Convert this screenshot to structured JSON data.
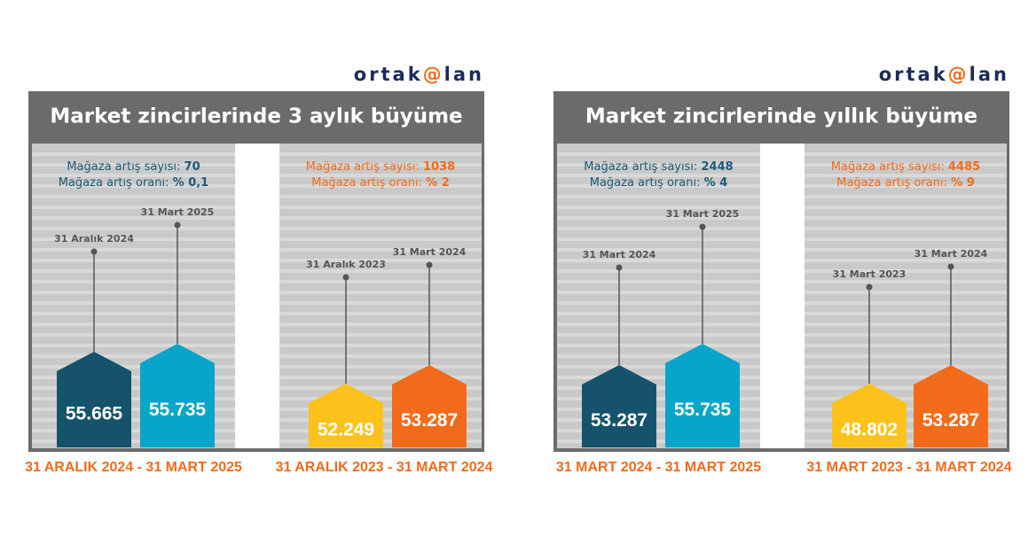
{
  "panels": [
    {
      "logo": {
        "pre": "ortak",
        "mark": "@",
        "post": "lan"
      },
      "title": "Market zincirlerinde 3 aylık büyüme",
      "sections": [
        {
          "stats": [
            {
              "label": "Mağaza artış sayısı:",
              "value": "70"
            },
            {
              "label": "Mağaza artış oranı:",
              "value": "% 0,1"
            }
          ],
          "houses": [
            {
              "date": "31 Aralık 2024",
              "value": "55.665"
            },
            {
              "date": "31 Mart 2025",
              "value": "55.735"
            }
          ],
          "period": "31 ARALIK 2024 - 31 MART 2025"
        },
        {
          "stats": [
            {
              "label": "Mağaza artış sayısı:",
              "value": "1038"
            },
            {
              "label": "Mağaza artış oranı:",
              "value": "% 2"
            }
          ],
          "houses": [
            {
              "date": "31 Aralık 2023",
              "value": "52.249"
            },
            {
              "date": "31 Mart 2024",
              "value": "53.287"
            }
          ],
          "period": "31 ARALIK 2023 - 31 MART 2024"
        }
      ]
    },
    {
      "logo": {
        "pre": "ortak",
        "mark": "@",
        "post": "lan"
      },
      "title": "Market zincirlerinde yıllık büyüme",
      "sections": [
        {
          "stats": [
            {
              "label": "Mağaza artış sayısı:",
              "value": "2448"
            },
            {
              "label": "Mağaza artış oranı:",
              "value": "% 4"
            }
          ],
          "houses": [
            {
              "date": "31 Mart 2024",
              "value": "53.287"
            },
            {
              "date": "31 Mart 2025",
              "value": "55.735"
            }
          ],
          "period": "31 MART 2024 - 31 MART 2025"
        },
        {
          "stats": [
            {
              "label": "Mağaza artış sayısı:",
              "value": "4485"
            },
            {
              "label": "Mağaza artış oranı:",
              "value": "% 9"
            }
          ],
          "houses": [
            {
              "date": "31 Mart 2023",
              "value": "48.802"
            },
            {
              "date": "31 Mart 2024",
              "value": "53.287"
            }
          ],
          "period": "31 MART 2023 - 31 MART 2024"
        }
      ]
    }
  ]
}
